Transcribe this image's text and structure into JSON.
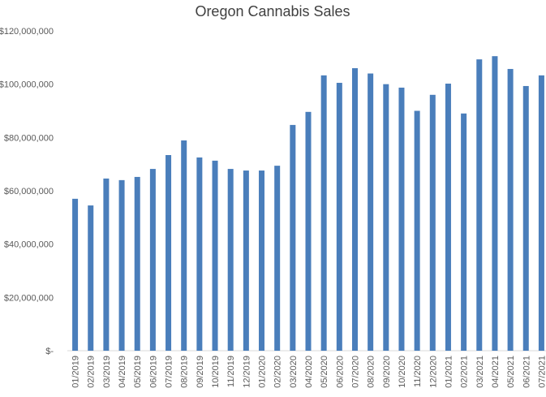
{
  "chart_data": {
    "type": "bar",
    "title": "Oregon Cannabis Sales",
    "xlabel": "",
    "ylabel": "",
    "ylim": [
      0,
      120000000
    ],
    "yticks": [
      0,
      20000000,
      40000000,
      60000000,
      80000000,
      100000000,
      120000000
    ],
    "ytick_labels": [
      "$-",
      "$20,000,000",
      "$40,000,000",
      "$60,000,000",
      "$80,000,000",
      "$100,000,000",
      "$120,000,000"
    ],
    "grid": false,
    "bar_color": "#4a7ebb",
    "categories": [
      "01/2019",
      "02/2019",
      "03/2019",
      "04/2019",
      "05/2019",
      "06/2019",
      "07/2019",
      "08/2019",
      "09/2019",
      "10/2019",
      "11/2019",
      "12/2019",
      "01/2020",
      "02/2020",
      "03/2020",
      "04/2020",
      "05/2020",
      "06/2020",
      "07/2020",
      "08/2020",
      "09/2020",
      "10/2020",
      "11/2020",
      "12/2020",
      "01/2021",
      "02/2021",
      "03/2021",
      "04/2021",
      "05/2021",
      "06/2021",
      "07/2021"
    ],
    "values": [
      57000000,
      54500000,
      64600000,
      64000000,
      65200000,
      68200000,
      73400000,
      78900000,
      72500000,
      71300000,
      68200000,
      67600000,
      67600000,
      69400000,
      84700000,
      89600000,
      103300000,
      100500000,
      106000000,
      104000000,
      100000000,
      98700000,
      90000000,
      96000000,
      100200000,
      89000000,
      109300000,
      110500000,
      105700000,
      99300000,
      103300000
    ]
  }
}
